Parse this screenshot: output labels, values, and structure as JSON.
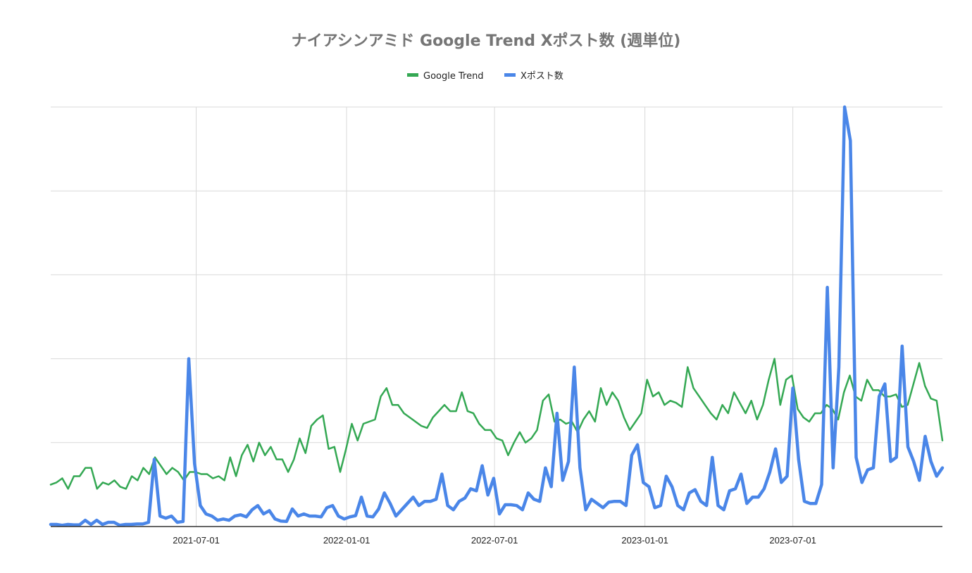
{
  "chart_data": {
    "type": "line",
    "title": "ナイアシンアミド Google Trend Xポスト数 (週単位)",
    "legend": {
      "position": "top-center",
      "entries": [
        "Google Trend",
        "Xポスト数"
      ]
    },
    "x_axis": {
      "type": "date",
      "range": [
        "2021-01-04",
        "2023-12-31"
      ],
      "ticks": [
        "2021-07-01",
        "2022-01-01",
        "2022-07-01",
        "2023-01-01",
        "2023-07-01"
      ]
    },
    "y_axis": {
      "range": [
        0,
        100
      ],
      "tick_labels_visible": false,
      "gridlines": 5
    },
    "grid": true,
    "series": [
      {
        "name": "Google Trend",
        "color": "#34A853",
        "values": [
          10,
          10.5,
          11.5,
          9,
          12,
          12,
          14,
          14,
          9,
          10.5,
          10,
          11,
          9.5,
          9,
          12,
          11,
          14,
          12.5,
          16.5,
          14.5,
          12.5,
          14,
          13,
          11,
          13,
          13,
          12.5,
          12.5,
          11.5,
          12,
          11,
          16.5,
          12,
          17,
          19.5,
          15.5,
          20,
          17,
          19,
          16,
          16,
          13,
          16,
          21,
          17.5,
          24,
          25.5,
          26.5,
          18.5,
          19,
          13,
          18.5,
          24.5,
          20.5,
          24.5,
          25,
          25.5,
          31,
          33,
          29,
          29,
          27,
          26,
          25,
          24,
          23.5,
          26,
          27.5,
          29,
          27.5,
          27.5,
          32,
          27.5,
          27,
          24.5,
          23,
          23,
          21,
          20.5,
          17,
          20,
          22.5,
          20,
          21,
          23,
          30,
          31.5,
          25,
          25.5,
          24.5,
          25,
          22.5,
          25.5,
          27.5,
          25,
          33,
          29,
          32,
          30,
          26,
          23,
          25,
          27,
          35,
          31,
          32,
          29,
          30,
          29.5,
          28.5,
          38,
          33,
          31,
          29,
          27,
          25.5,
          29,
          27,
          32,
          29.5,
          27,
          30,
          25.5,
          29,
          35,
          40,
          29,
          35,
          36,
          28,
          26,
          25,
          27,
          27,
          29,
          28,
          25.5,
          32,
          36,
          31,
          30,
          35,
          32.5,
          32.5,
          31,
          31,
          31.5,
          28.5,
          29,
          34,
          39,
          33.5,
          30.5,
          30,
          20.5
        ]
      },
      {
        "name": "Xポスト数",
        "color": "#4A86E8",
        "values": [
          0.5,
          0.5,
          0.3,
          0.5,
          0.4,
          0.4,
          1.5,
          0.5,
          1.5,
          0.5,
          1,
          1,
          0.3,
          0.5,
          0.5,
          0.6,
          0.6,
          1,
          16,
          2.5,
          2,
          2.5,
          1,
          1.2,
          40,
          15,
          5,
          3,
          2.5,
          1.5,
          1.8,
          1.5,
          2.5,
          2.8,
          2.3,
          4,
          5,
          3,
          3.8,
          1.8,
          1.3,
          1.2,
          4.2,
          2.5,
          3,
          2.5,
          2.5,
          2.3,
          4.5,
          5,
          2.5,
          1.8,
          2.3,
          2.6,
          7,
          2.5,
          2.3,
          4.2,
          8,
          5.5,
          2.5,
          4,
          5.5,
          7,
          5,
          6,
          6,
          6.5,
          12.5,
          5,
          4,
          6,
          6.8,
          9,
          8.5,
          14.5,
          7.5,
          11.5,
          3,
          5.2,
          5.2,
          5,
          4,
          8,
          6.5,
          6,
          14,
          9.5,
          27,
          11,
          15.5,
          38,
          14,
          4,
          6.5,
          5.5,
          4.5,
          5.8,
          6,
          6,
          5,
          17,
          19.5,
          10.5,
          9.5,
          4.5,
          5,
          12,
          9.5,
          5,
          4,
          8,
          8.8,
          6,
          5,
          16.5,
          5,
          4,
          8.5,
          9,
          12.5,
          5.5,
          7,
          7,
          9,
          13,
          18.5,
          10.5,
          12,
          33,
          16,
          6,
          5.5,
          5.5,
          10,
          57,
          14,
          38,
          100,
          92,
          16.5,
          10.5,
          13.5,
          14,
          31,
          34,
          15.5,
          16.5,
          43,
          19,
          15.5,
          11,
          21.5,
          15.5,
          12,
          14
        ]
      }
    ]
  }
}
